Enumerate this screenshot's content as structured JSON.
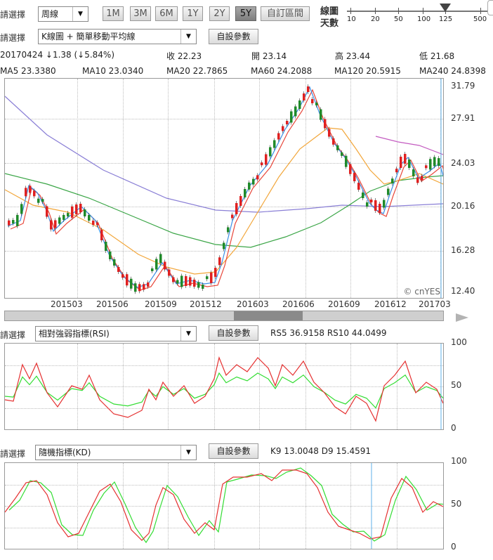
{
  "toolbar": {
    "select_label": "請選擇",
    "period_value": "周線",
    "period_buttons": [
      "1M",
      "3M",
      "6M",
      "1Y",
      "2Y",
      "5Y"
    ],
    "custom_range_label": "自訂區間",
    "line_days_label_1": "線圖",
    "line_days_label_2": "天數",
    "line_days_ticks": [
      "10",
      "20",
      "50",
      "100",
      "125",
      "500"
    ],
    "line_days_selected": "125"
  },
  "main_chart": {
    "select_label": "請選擇",
    "indicator_value": "K線圖 + 簡單移動平均線",
    "custom_params_label": "自設參數",
    "quote": {
      "date_change": "20170424 ↓1.38 (↓5.84%)",
      "close": "收 22.23",
      "open": "開 23.14",
      "high": "高 23.44",
      "low": "低 21.68"
    },
    "ma_legend": [
      {
        "label": "MA5 23.3380",
        "color": "#3a8ee6"
      },
      {
        "label": "MA10 23.0340",
        "color": "#e8473b"
      },
      {
        "label": "MA20 22.7865",
        "color": "#f2a63a"
      },
      {
        "label": "MA60 24.2088",
        "color": "#3aa546"
      },
      {
        "label": "MA120 20.5915",
        "color": "#8a7fd6"
      },
      {
        "label": "MA240 24.8398",
        "color": "#c35bc0"
      }
    ],
    "y_ticks": [
      "31.79",
      "27.91",
      "24.03",
      "20.16",
      "16.28",
      "12.40"
    ],
    "x_ticks": [
      "201503",
      "201506",
      "201509",
      "201512",
      "201603",
      "201606",
      "201609",
      "201612",
      "201703"
    ],
    "watermark": "© cnYES"
  },
  "rsi_panel": {
    "select_label": "請選擇",
    "indicator_value": "相對強弱指標(RSI)",
    "custom_params_label": "自設參數",
    "values": "RS5 36.9158   RS10 44.0499",
    "y_ticks": [
      "100",
      "50",
      "0"
    ]
  },
  "kd_panel": {
    "select_label": "請選擇",
    "indicator_value": "隨機指標(KD)",
    "custom_params_label": "自設參數",
    "values": "K9 13.0048   D9 15.4591",
    "y_ticks": [
      "100",
      "50",
      "0"
    ]
  },
  "colors": {
    "up_candle": "#e02020",
    "down_candle": "#1f8a2a",
    "rsi5": "#e53030",
    "rsi10": "#33dd33",
    "k9": "#e53030",
    "d9": "#33dd33",
    "cursor": "#5fb0e8"
  }
}
